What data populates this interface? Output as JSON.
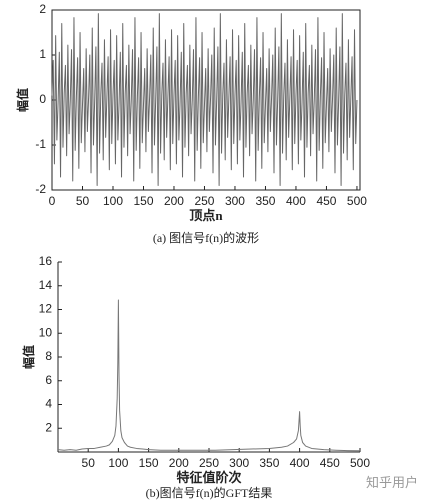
{
  "chart_data": [
    {
      "type": "line",
      "caption": "(a) 图信号f(n)的波形",
      "y_label": "幅值",
      "x_label": "顶点n",
      "xlim": [
        0,
        505
      ],
      "ylim": [
        -2,
        2
      ],
      "xticks": [
        0,
        50,
        100,
        150,
        200,
        250,
        300,
        350,
        400,
        450,
        500
      ],
      "yticks": [
        -2,
        -1,
        0,
        1,
        2
      ],
      "frame": true,
      "series": [
        {
          "color": "#666666",
          "x": [
            0,
            2,
            4,
            6,
            8,
            10,
            12,
            14,
            16,
            18,
            20,
            22,
            24,
            26,
            28,
            30,
            32,
            34,
            36,
            38,
            40,
            42,
            44,
            46,
            48,
            50,
            52,
            54,
            56,
            58,
            60,
            62,
            64,
            66,
            68,
            70,
            72,
            74,
            76,
            78,
            80,
            82,
            84,
            86,
            88,
            90,
            92,
            94,
            96,
            98,
            100,
            102,
            104,
            106,
            108,
            110,
            112,
            114,
            116,
            118,
            120,
            122,
            124,
            126,
            128,
            130,
            132,
            134,
            136,
            138,
            140,
            142,
            144,
            146,
            148,
            150,
            152,
            154,
            156,
            158,
            160,
            162,
            164,
            166,
            168,
            170,
            172,
            174,
            176,
            178,
            180,
            182,
            184,
            186,
            188,
            190,
            192,
            194,
            196,
            198,
            200,
            202,
            204,
            206,
            208,
            210,
            212,
            214,
            216,
            218,
            220,
            222,
            224,
            226,
            228,
            230,
            232,
            234,
            236,
            238,
            240,
            242,
            244,
            246,
            248,
            250,
            252,
            254,
            256,
            258,
            260,
            262,
            264,
            266,
            268,
            270,
            272,
            274,
            276,
            278,
            280,
            282,
            284,
            286,
            288,
            290,
            292,
            294,
            296,
            298,
            300,
            302,
            304,
            306,
            308,
            310,
            312,
            314,
            316,
            318,
            320,
            322,
            324,
            326,
            328,
            330,
            332,
            334,
            336,
            338,
            340,
            342,
            344,
            346,
            348,
            350,
            352,
            354,
            356,
            358,
            360,
            362,
            364,
            366,
            368,
            370,
            372,
            374,
            376,
            378,
            380,
            382,
            384,
            386,
            388,
            390,
            392,
            394,
            396,
            398,
            400,
            402,
            404,
            406,
            408,
            410,
            412,
            414,
            416,
            418,
            420,
            422,
            424,
            426,
            428,
            430,
            432,
            434,
            436,
            438,
            440,
            442,
            444,
            446,
            448,
            450,
            452,
            454,
            456,
            458,
            460,
            462,
            464,
            466,
            468,
            470,
            472,
            474,
            476,
            478,
            480,
            482,
            484,
            486,
            488,
            490,
            492,
            494,
            496,
            498,
            500
          ],
          "values": [
            0.1,
            0.88,
            -1.42,
            1.43,
            -0.89,
            -0.05,
            1.06,
            -1.71,
            1.7,
            -1.05,
            0.15,
            0.77,
            -1.24,
            1.22,
            -0.75,
            0,
            1.12,
            -1.8,
            1.83,
            -1.12,
            0.08,
            0.94,
            -1.52,
            1.5,
            -0.95,
            -0.1,
            0.7,
            -1.15,
            1.14,
            -0.7,
            0.05,
            1.0,
            -1.62,
            1.6,
            -1.0,
            0,
            1.18,
            -1.9,
            1.92,
            -1.18,
            0.12,
            0.82,
            -1.33,
            1.34,
            -0.83,
            0.06,
            0.96,
            -1.55,
            1.56,
            -0.97,
            0.1,
            0.88,
            -1.42,
            1.43,
            -0.89,
            -0.05,
            1.06,
            -1.71,
            1.7,
            -1.05,
            0.15,
            0.77,
            -1.24,
            1.22,
            -0.75,
            0,
            1.12,
            -1.8,
            1.83,
            -1.12,
            0.08,
            0.94,
            -1.52,
            1.5,
            -0.95,
            -0.1,
            0.7,
            -1.15,
            1.14,
            -0.7,
            0.05,
            1.0,
            -1.62,
            1.6,
            -1.0,
            0,
            1.18,
            -1.9,
            1.92,
            -1.18,
            0.12,
            0.82,
            -1.33,
            1.34,
            -0.83,
            0.06,
            0.96,
            -1.55,
            1.56,
            -0.97,
            0.1,
            0.88,
            -1.42,
            1.43,
            -0.89,
            -0.05,
            1.06,
            -1.71,
            1.7,
            -1.05,
            0.15,
            0.77,
            -1.24,
            1.22,
            -0.75,
            0,
            1.12,
            -1.8,
            1.83,
            -1.12,
            0.08,
            0.94,
            -1.52,
            1.5,
            -0.95,
            -0.1,
            0.7,
            -1.15,
            1.14,
            -0.7,
            0.05,
            1.0,
            -1.62,
            1.6,
            -1.0,
            0,
            1.18,
            -1.9,
            1.92,
            -1.18,
            0.12,
            0.82,
            -1.33,
            1.34,
            -0.83,
            0.06,
            0.96,
            -1.55,
            1.56,
            -0.97,
            0.1,
            0.88,
            -1.42,
            1.43,
            -0.89,
            -0.05,
            1.06,
            -1.71,
            1.7,
            -1.05,
            0.15,
            0.77,
            -1.24,
            1.22,
            -0.75,
            0,
            1.12,
            -1.8,
            1.83,
            -1.12,
            0.08,
            0.94,
            -1.52,
            1.5,
            -0.95,
            -0.1,
            0.7,
            -1.15,
            1.14,
            -0.7,
            0.05,
            1.0,
            -1.62,
            1.6,
            -1.0,
            0,
            1.18,
            -1.9,
            1.92,
            -1.18,
            0.12,
            0.82,
            -1.33,
            1.34,
            -0.83,
            0.06,
            0.96,
            -1.55,
            1.56,
            -0.97,
            0.1,
            0.88,
            -1.42,
            1.43,
            -0.89,
            -0.05,
            1.06,
            -1.71,
            1.7,
            -1.05,
            0.15,
            0.77,
            -1.24,
            1.22,
            -0.75,
            0,
            1.12,
            -1.8,
            1.83,
            -1.12,
            0.08,
            0.94,
            -1.52,
            1.5,
            -0.95,
            -0.1,
            0.7,
            -1.15,
            1.14,
            -0.7,
            0.05,
            1.0,
            -1.62,
            1.6,
            -1.0,
            0,
            1.18,
            -1.9,
            1.92,
            -1.18,
            0.12,
            0.82,
            -1.33,
            1.34,
            -0.83,
            0.06,
            0.96,
            -1.55,
            1.56,
            -0.97,
            0
          ]
        }
      ]
    },
    {
      "type": "line",
      "caption": "(b)图信号f(n)的GFT结果",
      "y_label": "幅值",
      "x_label": "特征值阶次",
      "xlim": [
        0,
        500
      ],
      "ylim": [
        0,
        16
      ],
      "xticks": [
        50,
        100,
        150,
        200,
        250,
        300,
        350,
        400,
        450,
        500
      ],
      "yticks": [
        2,
        4,
        6,
        8,
        10,
        12,
        14,
        16
      ],
      "frame": false,
      "series": [
        {
          "color": "#777777",
          "x": [
            0,
            10,
            20,
            30,
            40,
            50,
            60,
            70,
            80,
            85,
            90,
            94,
            96,
            98,
            99,
            100,
            101,
            102,
            104,
            106,
            110,
            115,
            120,
            130,
            140,
            150,
            170,
            200,
            230,
            260,
            290,
            320,
            350,
            370,
            380,
            390,
            395,
            398,
            399,
            400,
            401,
            402,
            405,
            410,
            420,
            440,
            460,
            480,
            500
          ],
          "values": [
            0.2,
            0.15,
            0.2,
            0.15,
            0.25,
            0.3,
            0.3,
            0.4,
            0.5,
            0.6,
            0.9,
            1.4,
            2.2,
            4.5,
            7.5,
            12.8,
            6.5,
            3.5,
            1.8,
            1.2,
            0.8,
            0.5,
            0.4,
            0.3,
            0.25,
            0.2,
            0.15,
            0.15,
            0.15,
            0.15,
            0.2,
            0.25,
            0.3,
            0.4,
            0.5,
            0.8,
            1.1,
            1.8,
            2.6,
            3.4,
            2.2,
            1.4,
            0.8,
            0.5,
            0.3,
            0.2,
            0.15,
            0.12,
            0.1
          ]
        }
      ]
    }
  ],
  "watermark": "知乎用户"
}
